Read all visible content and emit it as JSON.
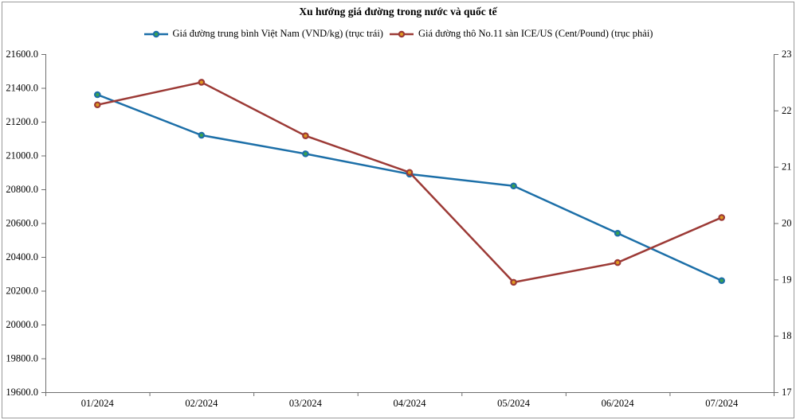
{
  "chart": {
    "title": "Xu hướng giá đường trong nước và quốc tế"
  },
  "chart_data": {
    "type": "line",
    "title": "Xu hướng giá đường trong nước và quốc tế",
    "categories": [
      "01/2024",
      "02/2024",
      "03/2024",
      "04/2024",
      "05/2024",
      "06/2024",
      "07/2024"
    ],
    "series": [
      {
        "name": "Giá đường trung bình Việt Nam (VND/kg) (trục trái)",
        "axis": "left",
        "color": "#1C6FA8",
        "marker_color": "#3AA34D",
        "values": [
          21360,
          21120,
          21010,
          20890,
          20820,
          20540,
          20260
        ]
      },
      {
        "name": "Giá đường thô No.11 sàn ICE/US (Cent/Pound) (trục phải)",
        "axis": "right",
        "color": "#9C3A36",
        "marker_color": "#DF9A20",
        "values": [
          22.1,
          22.5,
          21.55,
          20.9,
          18.95,
          19.3,
          20.1
        ]
      }
    ],
    "left_axis": {
      "min": 19600,
      "max": 21600,
      "tick_values": [
        19600,
        19800,
        20000,
        20200,
        20400,
        20600,
        20800,
        21000,
        21200,
        21400,
        21600
      ],
      "tick_labels": [
        "19600.0",
        "19800.0",
        "20000.0",
        "20200.0",
        "20400.0",
        "20600.0",
        "20800.0",
        "21000.0",
        "21200.0",
        "21400.0",
        "21600.0"
      ]
    },
    "right_axis": {
      "min": 17,
      "max": 23,
      "tick_values": [
        17,
        18,
        19,
        20,
        21,
        22,
        23
      ],
      "tick_labels": [
        "17",
        "18",
        "19",
        "20",
        "21",
        "22",
        "23"
      ]
    },
    "grid": false,
    "legend_position": "top"
  },
  "colors": {
    "axis_line": "#6e6e6e",
    "border": "#9a9a9a",
    "text": "#000000"
  }
}
